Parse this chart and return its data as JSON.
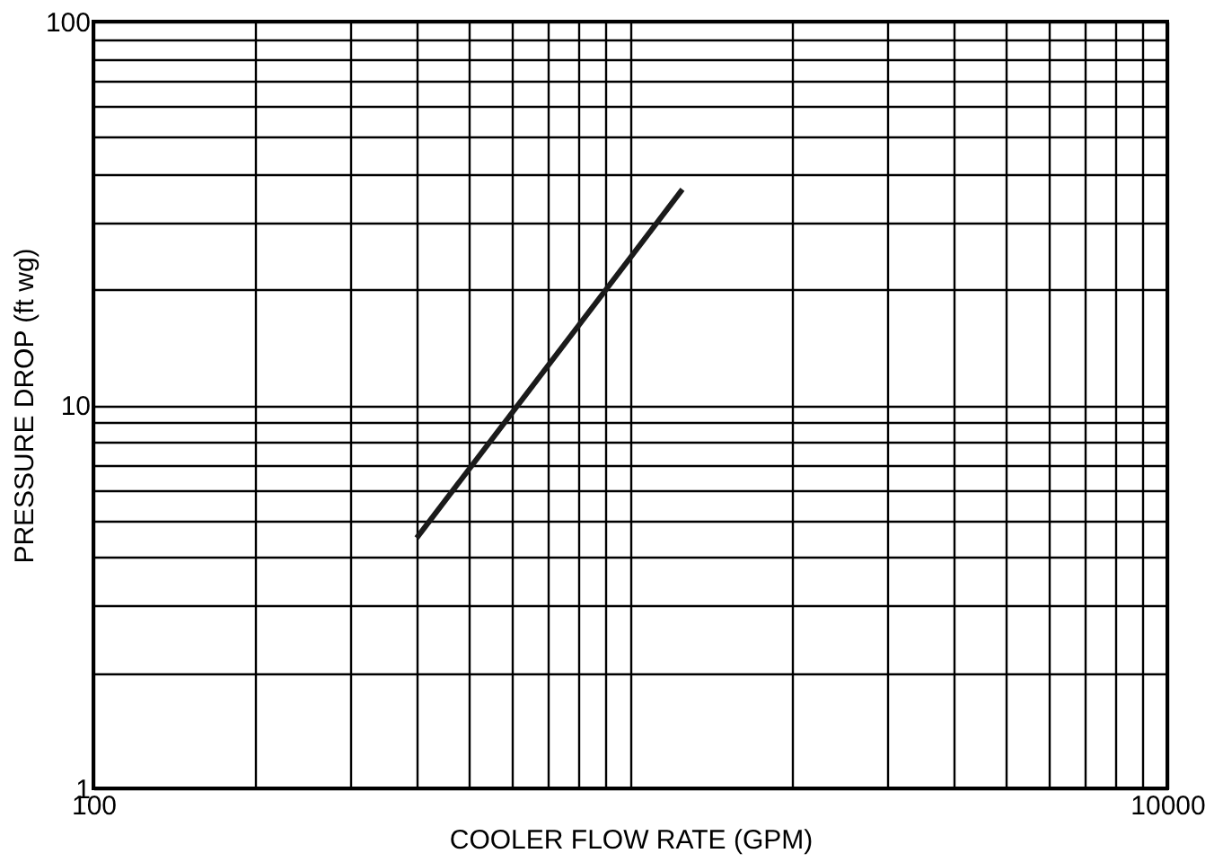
{
  "chart_data": {
    "type": "line",
    "xlabel": "COOLER FLOW RATE (GPM)",
    "ylabel": "PRESSURE DROP (ft wg)",
    "x": [
      400,
      1250
    ],
    "series": [
      {
        "color": "#1a1a1a",
        "values": [
          4.5,
          36.5
        ]
      }
    ],
    "log": "xy",
    "grid": true,
    "marker": "none",
    "line_style": "solid",
    "xlim": [
      100,
      10000
    ],
    "xticks": [
      100,
      {
        "value": 200,
        "label": null
      },
      {
        "value": 300,
        "label": null
      },
      {
        "value": 400,
        "label": null
      },
      {
        "value": 500,
        "label": null
      },
      {
        "value": 600,
        "label": null
      },
      {
        "value": 700,
        "label": null
      },
      {
        "value": 800,
        "label": null
      },
      {
        "value": 900,
        "label": null
      },
      {
        "value": 1000,
        "label": null
      },
      {
        "value": 2000,
        "label": null
      },
      {
        "value": 3000,
        "label": null
      },
      {
        "value": 4000,
        "label": null
      },
      {
        "value": 5000,
        "label": null
      },
      {
        "value": 6000,
        "label": null
      },
      {
        "value": 7000,
        "label": null
      },
      {
        "value": 8000,
        "label": null
      },
      {
        "value": 9000,
        "label": null
      },
      10000
    ],
    "ylim": [
      1,
      100
    ],
    "yticks": [
      1,
      {
        "value": 2,
        "label": null
      },
      {
        "value": 3,
        "label": null
      },
      {
        "value": 4,
        "label": null
      },
      {
        "value": 5,
        "label": null
      },
      {
        "value": 6,
        "label": null
      },
      {
        "value": 7,
        "label": null
      },
      {
        "value": 8,
        "label": null
      },
      {
        "value": 9,
        "label": null
      },
      10,
      {
        "value": 20,
        "label": null
      },
      {
        "value": 30,
        "label": null
      },
      {
        "value": 40,
        "label": null
      },
      {
        "value": 50,
        "label": null
      },
      {
        "value": 60,
        "label": null
      },
      {
        "value": 70,
        "label": null
      },
      {
        "value": 80,
        "label": null
      },
      {
        "value": 90,
        "label": null
      },
      100
    ]
  }
}
